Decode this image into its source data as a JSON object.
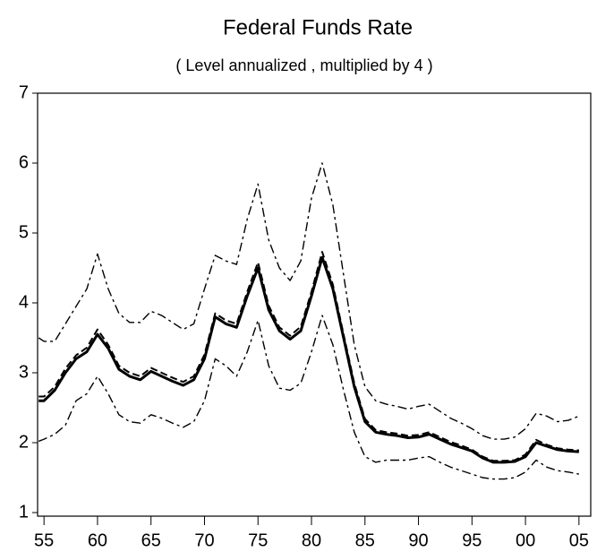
{
  "chart_data": {
    "type": "line",
    "title": "Federal Funds Rate",
    "subtitle": "( Level annualized , multiplied by 4 )",
    "x": [
      1954.5,
      1955,
      1956,
      1957,
      1958,
      1959,
      1960,
      1961,
      1962,
      1963,
      1964,
      1965,
      1966,
      1967,
      1968,
      1969,
      1970,
      1971,
      1972,
      1973,
      1974,
      1975,
      1976,
      1977,
      1978,
      1979,
      1980,
      1981,
      1982,
      1983,
      1984,
      1985,
      1986,
      1987,
      1988,
      1989,
      1990,
      1991,
      1992,
      1993,
      1994,
      1995,
      1996,
      1997,
      1998,
      1999,
      2000,
      2001,
      2002,
      2003,
      2004,
      2005
    ],
    "series": [
      {
        "color": "#000000",
        "dash": "none",
        "width": 3,
        "values": [
          2.6,
          2.6,
          2.75,
          3.0,
          3.2,
          3.3,
          3.55,
          3.35,
          3.05,
          2.95,
          2.9,
          3.02,
          2.95,
          2.88,
          2.82,
          2.9,
          3.2,
          3.8,
          3.7,
          3.65,
          4.1,
          4.5,
          3.9,
          3.6,
          3.48,
          3.6,
          4.1,
          4.65,
          4.2,
          3.5,
          2.8,
          2.3,
          2.15,
          2.12,
          2.1,
          2.07,
          2.08,
          2.12,
          2.05,
          1.98,
          1.93,
          1.88,
          1.78,
          1.72,
          1.72,
          1.73,
          1.8,
          2.0,
          1.95,
          1.9,
          1.88,
          1.87
        ]
      },
      {
        "color": "#000000",
        "dash": "8 4",
        "width": 2,
        "values": [
          2.66,
          2.66,
          2.8,
          3.06,
          3.25,
          3.36,
          3.62,
          3.4,
          3.1,
          3.0,
          2.95,
          3.07,
          3.0,
          2.93,
          2.87,
          2.95,
          3.26,
          3.85,
          3.75,
          3.7,
          4.16,
          4.58,
          3.96,
          3.65,
          3.53,
          3.66,
          4.16,
          4.73,
          4.26,
          3.55,
          2.85,
          2.34,
          2.18,
          2.15,
          2.13,
          2.1,
          2.11,
          2.15,
          2.08,
          2.01,
          1.96,
          1.9,
          1.8,
          1.74,
          1.74,
          1.75,
          1.83,
          2.04,
          1.97,
          1.92,
          1.9,
          1.89
        ]
      },
      {
        "color": "#000000",
        "dash": "10 4 3 4",
        "width": 1.4,
        "values": [
          3.5,
          3.45,
          3.45,
          3.7,
          3.95,
          4.2,
          4.7,
          4.2,
          3.85,
          3.72,
          3.72,
          3.88,
          3.82,
          3.72,
          3.62,
          3.7,
          4.2,
          4.68,
          4.6,
          4.55,
          5.2,
          5.7,
          4.9,
          4.5,
          4.32,
          4.6,
          5.5,
          6.0,
          5.4,
          4.4,
          3.4,
          2.8,
          2.6,
          2.55,
          2.52,
          2.48,
          2.52,
          2.55,
          2.45,
          2.35,
          2.28,
          2.2,
          2.1,
          2.05,
          2.05,
          2.08,
          2.2,
          2.42,
          2.38,
          2.3,
          2.32,
          2.38
        ]
      },
      {
        "color": "#000000",
        "dash": "10 4 3 4",
        "width": 1.4,
        "values": [
          2.02,
          2.05,
          2.12,
          2.25,
          2.6,
          2.7,
          2.95,
          2.7,
          2.4,
          2.3,
          2.28,
          2.4,
          2.35,
          2.28,
          2.22,
          2.3,
          2.6,
          3.2,
          3.1,
          2.95,
          3.3,
          3.75,
          3.1,
          2.78,
          2.75,
          2.85,
          3.3,
          3.82,
          3.4,
          2.75,
          2.15,
          1.8,
          1.72,
          1.75,
          1.75,
          1.75,
          1.78,
          1.8,
          1.72,
          1.65,
          1.6,
          1.55,
          1.5,
          1.48,
          1.48,
          1.5,
          1.58,
          1.75,
          1.65,
          1.6,
          1.58,
          1.55
        ]
      }
    ],
    "xlim": [
      1954.4,
      2006.1
    ],
    "xticks": [
      {
        "value": 1955,
        "label": "55"
      },
      {
        "value": 1960,
        "label": "60"
      },
      {
        "value": 1965,
        "label": "65"
      },
      {
        "value": 1970,
        "label": "70"
      },
      {
        "value": 1975,
        "label": "75"
      },
      {
        "value": 1980,
        "label": "80"
      },
      {
        "value": 1985,
        "label": "85"
      },
      {
        "value": 1990,
        "label": "90"
      },
      {
        "value": 1995,
        "label": "95"
      },
      {
        "value": 2000,
        "label": "00"
      },
      {
        "value": 2005,
        "label": "05"
      }
    ],
    "ylim": [
      1,
      7
    ],
    "yticks": [
      1,
      2,
      3,
      4,
      5,
      6,
      7
    ],
    "grid": false
  }
}
